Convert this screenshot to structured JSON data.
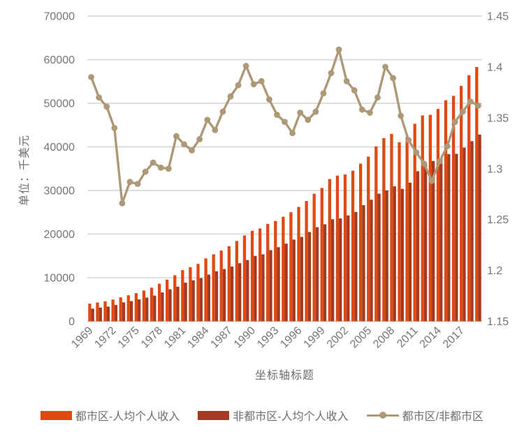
{
  "colors": {
    "metro_bar": "#E04A12",
    "nonmetro_bar": "#A33B22",
    "ratio_line": "#AD9877",
    "gridline": "#D9D9D9",
    "tick_text": "#757575",
    "title_text": "#6D6D6D",
    "background": "#FFFFFF"
  },
  "chart_data": {
    "type": "bar+line combo",
    "x_axis_title": "坐标轴标题",
    "x": [
      1969,
      1970,
      1971,
      1972,
      1973,
      1974,
      1975,
      1976,
      1977,
      1978,
      1979,
      1980,
      1981,
      1982,
      1983,
      1984,
      1985,
      1986,
      1987,
      1988,
      1989,
      1990,
      1991,
      1992,
      1993,
      1994,
      1995,
      1996,
      1997,
      1998,
      1999,
      2000,
      2001,
      2002,
      2003,
      2004,
      2005,
      2006,
      2007,
      2008,
      2009,
      2010,
      2011,
      2012,
      2013,
      2014,
      2015,
      2016,
      2017,
      2018,
      2019
    ],
    "x_tick_labels": [
      "1969",
      "1972",
      "1975",
      "1978",
      "1981",
      "1984",
      "1987",
      "1990",
      "1993",
      "1996",
      "1999",
      "2002",
      "2005",
      "2008",
      "2011",
      "2014",
      "2017"
    ],
    "x_tick_every": 3,
    "left_axis": {
      "title": "单位：千美元",
      "min": 0,
      "max": 70000,
      "step": 10000,
      "tick_labels": [
        "0",
        "10000",
        "20000",
        "30000",
        "40000",
        "50000",
        "60000",
        "70000"
      ]
    },
    "right_axis": {
      "min": 1.15,
      "max": 1.45,
      "step": 0.05,
      "tick_labels": [
        "1.15",
        "1.2",
        "1.25",
        "1.3",
        "1.35",
        "1.4",
        "1.45"
      ]
    },
    "grid": "horizontal",
    "legend_position": "bottom",
    "series": [
      {
        "name": "都市区-人均个人收入",
        "type": "bar",
        "axis": "left",
        "color": "#E04A12",
        "values": [
          4046,
          4318,
          4598,
          5001,
          5489,
          5972,
          6465,
          7059,
          7714,
          8625,
          9554,
          10565,
          11735,
          12399,
          13165,
          14439,
          15361,
          16232,
          17212,
          18422,
          19681,
          20742,
          21283,
          22341,
          23004,
          23971,
          25016,
          26240,
          27596,
          29261,
          30575,
          32622,
          33427,
          33670,
          34541,
          36174,
          37761,
          40096,
          42013,
          42988,
          41068,
          42232,
          45300,
          47200,
          47350,
          48699,
          50695,
          51703,
          53987,
          56426,
          58310
        ]
      },
      {
        "name": "非都市区-人均个人收入",
        "type": "bar",
        "axis": "left",
        "color": "#A33B22",
        "values": [
          2911,
          3152,
          3378,
          3732,
          4336,
          4640,
          5031,
          5443,
          5907,
          6630,
          7349,
          7932,
          8863,
          9408,
          9906,
          10712,
          11481,
          11971,
          12554,
          13330,
          14048,
          14998,
          15356,
          16331,
          17002,
          17809,
          18739,
          19365,
          20472,
          21579,
          22252,
          23402,
          23590,
          24292,
          25084,
          26638,
          27868,
          29267,
          30009,
          30949,
          30376,
          31801,
          34422,
          36169,
          36762,
          37260,
          38347,
          38409,
          39813,
          41308,
          42812
        ]
      },
      {
        "name": "都市区/非都市区",
        "type": "line",
        "axis": "right",
        "color": "#AD9877",
        "marker": "circle",
        "values": [
          1.39,
          1.37,
          1.361,
          1.34,
          1.266,
          1.287,
          1.285,
          1.297,
          1.306,
          1.301,
          1.3,
          1.332,
          1.324,
          1.318,
          1.329,
          1.348,
          1.338,
          1.356,
          1.371,
          1.382,
          1.401,
          1.383,
          1.386,
          1.368,
          1.353,
          1.346,
          1.335,
          1.355,
          1.348,
          1.356,
          1.374,
          1.394,
          1.417,
          1.386,
          1.377,
          1.358,
          1.355,
          1.37,
          1.4,
          1.389,
          1.352,
          1.328,
          1.316,
          1.305,
          1.288,
          1.307,
          1.322,
          1.346,
          1.356,
          1.366,
          1.362
        ]
      }
    ]
  }
}
